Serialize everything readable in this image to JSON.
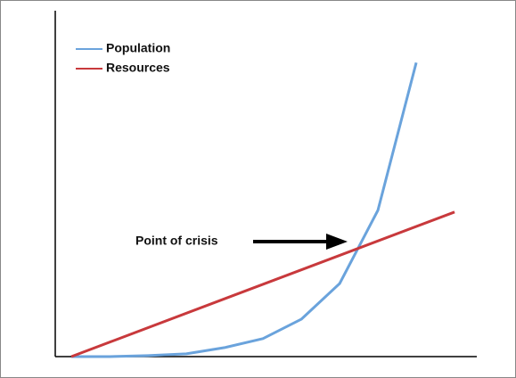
{
  "chart_data": {
    "type": "line",
    "series": [
      {
        "name": "Population",
        "color": "#6aa3dc",
        "x": [
          0,
          1,
          2,
          3,
          4,
          5,
          6,
          7,
          8,
          9
        ],
        "values": [
          0,
          0,
          0.3,
          0.8,
          2.6,
          5.2,
          10.8,
          21.1,
          42.3,
          85
        ]
      },
      {
        "name": "Resources",
        "color": "#c8393c",
        "x": [
          0,
          10
        ],
        "values": [
          0,
          41.8
        ]
      }
    ],
    "xlim": [
      -0.42,
      10.58
    ],
    "ylim": [
      0,
      100
    ],
    "legend": "upper left",
    "annotations": [
      {
        "text": "Point of crisis"
      }
    ]
  }
}
